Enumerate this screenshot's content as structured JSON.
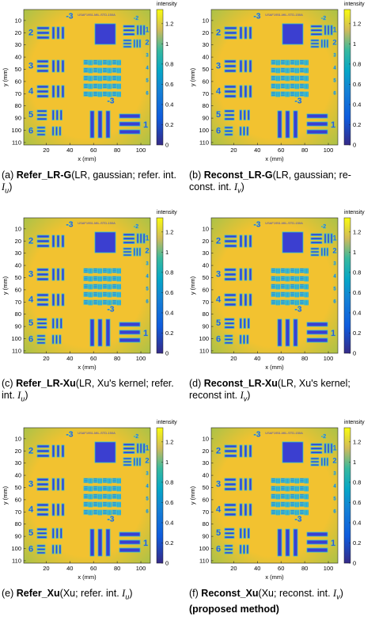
{
  "axes": {
    "xlabel": "x (mm)",
    "ylabel": "y (mm)",
    "xlim": [
      1,
      108
    ],
    "ylim": [
      1,
      112
    ],
    "xticks": [
      20,
      40,
      60,
      80,
      100
    ],
    "yticks": [
      10,
      20,
      30,
      40,
      50,
      60,
      70,
      80,
      90,
      100,
      110
    ],
    "colorbar": {
      "label": "intensity",
      "lim": [
        0,
        1.34
      ],
      "ticks": [
        0,
        0.2,
        0.4,
        0.6,
        0.8,
        1,
        1.2
      ]
    }
  },
  "target": {
    "title": "USAF1951-MIL-STD-150A",
    "top_label": "-3",
    "top_right_label": "-2",
    "bottom_label": "-3",
    "bottom_right_label": "1",
    "group_labels": [
      "2",
      "3",
      "4",
      "5",
      "6"
    ],
    "right_labels": [
      "1",
      "2",
      "3",
      "4",
      "5",
      "6"
    ]
  },
  "panels": [
    {
      "caption": {
        "label": "(a)",
        "name": "Refer_LR-G",
        "text": "(LR, gaussian; refer. int.",
        "var": "I",
        "sub": "u",
        "close": ")"
      }
    },
    {
      "caption": {
        "label": "(b)",
        "name": "Reconst_LR-G",
        "text": "(LR, gaussian; re-const. int.",
        "var": "I",
        "sub": "v",
        "close": ")"
      }
    },
    {
      "caption": {
        "label": "(c)",
        "name": "Refer_LR-Xu",
        "text": "(LR, Xu's kernel; refer. int.",
        "var": "I",
        "sub": "u",
        "close": ")"
      }
    },
    {
      "caption": {
        "label": "(d)",
        "name": "Reconst_LR-Xu",
        "text": "(LR, Xu's kernel; reconst int.",
        "var": "I",
        "sub": "v",
        "close": ")"
      }
    },
    {
      "caption": {
        "label": "(e)",
        "name": "Refer_Xu",
        "text": "(Xu; refer. int.",
        "var": "I",
        "sub": "u",
        "close": ")"
      }
    },
    {
      "caption": {
        "label": "(f)",
        "name": "Reconst_Xu",
        "text": "(Xu; reconst. int.",
        "var": "I",
        "sub": "v",
        "close": ")",
        "extra": "(proposed method)"
      }
    }
  ]
}
